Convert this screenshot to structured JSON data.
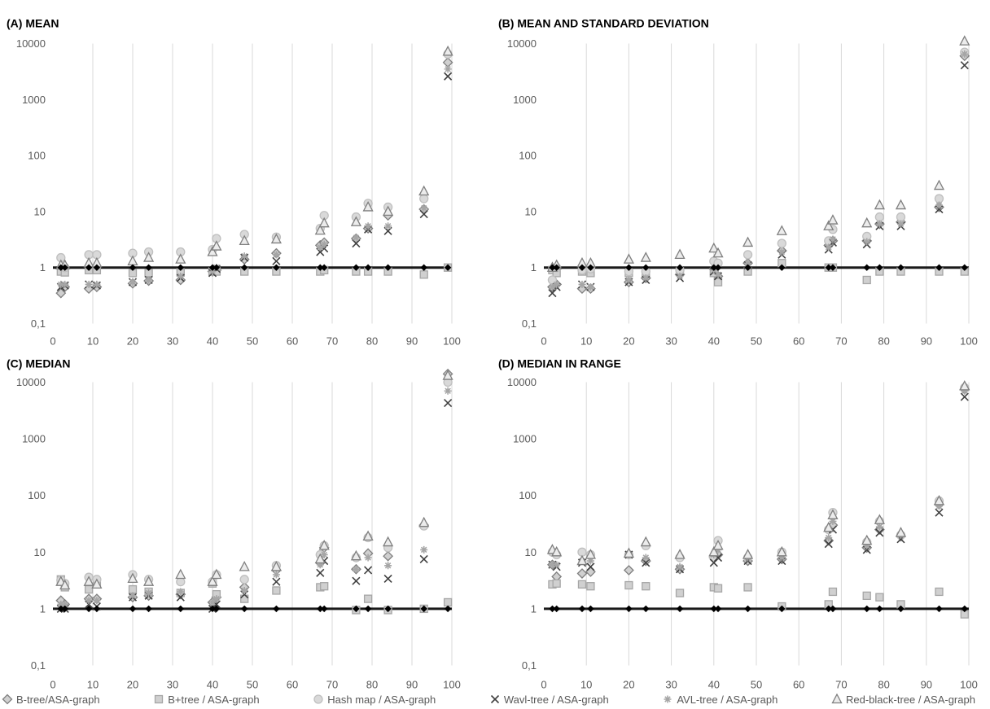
{
  "chart_data": {
    "legend": [
      {
        "name": "B-tree/ASA-graph",
        "marker": "diamond",
        "color": "#7f7f7f"
      },
      {
        "name": "B+tree / ASA-graph",
        "marker": "square",
        "color": "#a6a6a6"
      },
      {
        "name": "Hash map / ASA-graph",
        "marker": "circle",
        "color": "#bfbfbf"
      },
      {
        "name": "Wavl-tree / ASA-graph",
        "marker": "x",
        "color": "#404040"
      },
      {
        "name": "AVL-tree / ASA-graph",
        "marker": "star",
        "color": "#a6a6a6"
      },
      {
        "name": "Red-black-tree / ASA-graph",
        "marker": "triangle",
        "color": "#7f7f7f"
      }
    ],
    "panels": [
      {
        "title": "(A) MEAN",
        "type": "scatter",
        "xlim": [
          0,
          100
        ],
        "xticks": [
          0,
          10,
          20,
          30,
          40,
          50,
          60,
          70,
          80,
          90,
          100
        ],
        "ylog": true,
        "ylim": [
          0.1,
          10000
        ],
        "yticks": [
          "0,1",
          "1",
          "10",
          "100",
          "1000",
          "10000"
        ],
        "grid": "vertical",
        "reference_line": 1,
        "x": [
          2,
          3,
          9,
          11,
          20,
          24,
          32,
          40,
          41,
          48,
          56,
          67,
          68,
          76,
          79,
          84,
          93,
          99
        ],
        "series": [
          {
            "name": "B-tree/ASA-graph",
            "values": [
              0.35,
              0.45,
              0.42,
              0.45,
              0.52,
              0.58,
              0.6,
              0.85,
              0.9,
              1.4,
              1.8,
              2.5,
              2.8,
              3.3,
              5,
              8.5,
              11,
              4600
            ]
          },
          {
            "name": "B+tree / ASA-graph",
            "values": [
              0.85,
              0.82,
              0.9,
              0.9,
              0.8,
              0.8,
              0.82,
              0.85,
              0.85,
              0.85,
              0.85,
              0.85,
              0.9,
              0.85,
              0.85,
              0.85,
              0.75,
              1
            ]
          },
          {
            "name": "Hash map / ASA-graph",
            "values": [
              1.5,
              1,
              1.7,
              1.7,
              1.8,
              1.9,
              1.9,
              2.1,
              3.3,
              3.9,
              3.5,
              5,
              8.5,
              8,
              14,
              12,
              17,
              6500
            ]
          },
          {
            "name": "Wavl-tree / ASA-graph",
            "values": [
              0.45,
              0.48,
              0.5,
              0.48,
              0.55,
              0.6,
              0.65,
              0.8,
              0.95,
              1.5,
              1.3,
              1.9,
              2.2,
              2.7,
              4.8,
              4.5,
              9,
              2600
            ]
          },
          {
            "name": "AVL-tree / ASA-graph",
            "values": [
              0.5,
              0.5,
              0.5,
              0.5,
              0.55,
              0.6,
              0.7,
              0.85,
              1,
              1.6,
              1.7,
              2.3,
              2.6,
              3.4,
              5.5,
              5.5,
              11.5,
              3500
            ]
          },
          {
            "name": "Red-black-tree / ASA-graph",
            "values": [
              1.1,
              1.1,
              1.2,
              1.2,
              1.3,
              1.5,
              1.4,
              1.9,
              2.4,
              3,
              3.2,
              4.6,
              6.2,
              6.5,
              12,
              10,
              23,
              7200
            ]
          },
          {
            "name": "",
            "values": [
              1,
              1,
              1,
              1,
              1,
              1,
              1,
              1,
              1,
              1,
              1,
              1,
              1,
              1,
              1,
              1,
              1,
              1
            ]
          }
        ]
      },
      {
        "title": "(B) MEAN AND STANDARD DEVIATION",
        "type": "scatter",
        "xlim": [
          0,
          100
        ],
        "xticks": [
          0,
          10,
          20,
          30,
          40,
          50,
          60,
          70,
          80,
          90,
          100
        ],
        "ylog": true,
        "ylim": [
          0.1,
          10000
        ],
        "yticks": [
          "0,1",
          "1",
          "10",
          "100",
          "1000",
          "10000"
        ],
        "grid": "vertical",
        "reference_line": 1,
        "x": [
          2,
          3,
          9,
          11,
          20,
          24,
          32,
          40,
          41,
          48,
          56,
          67,
          68,
          76,
          79,
          84,
          93,
          99
        ],
        "series": [
          {
            "name": "B-tree/ASA-graph",
            "values": [
              0.45,
              0.5,
              0.42,
              0.42,
              0.55,
              0.65,
              0.75,
              0.95,
              0.7,
              1.2,
              2,
              2.5,
              3,
              3,
              6,
              6.5,
              12,
              6000
            ]
          },
          {
            "name": "B+tree / ASA-graph",
            "values": [
              0.9,
              0.8,
              0.85,
              0.8,
              0.8,
              0.8,
              0.85,
              0.8,
              0.55,
              0.85,
              1.2,
              1,
              1,
              0.6,
              0.85,
              0.85,
              0.85,
              0.85
            ]
          },
          {
            "name": "Hash map / ASA-graph",
            "values": [
              0.6,
              1,
              0.9,
              0.95,
              0.85,
              0.85,
              0.9,
              1.3,
              1.2,
              1.7,
              2.7,
              3,
              4.8,
              3.6,
              8,
              8,
              17,
              7000
            ]
          },
          {
            "name": "Wavl-tree / ASA-graph",
            "values": [
              0.35,
              0.45,
              0.5,
              0.45,
              0.55,
              0.6,
              0.65,
              0.85,
              0.7,
              1.1,
              1.7,
              2.1,
              2.8,
              2.6,
              5.5,
              5.5,
              11,
              4100
            ]
          },
          {
            "name": "AVL-tree / ASA-graph",
            "values": [
              0.45,
              0.5,
              0.5,
              0.45,
              0.6,
              0.65,
              0.7,
              0.9,
              0.75,
              1.2,
              1.9,
              2.3,
              3.2,
              2.9,
              6,
              6,
              13,
              6500
            ]
          },
          {
            "name": "Red-black-tree / ASA-graph",
            "values": [
              1,
              1.1,
              1.2,
              1.2,
              1.4,
              1.5,
              1.7,
              2.2,
              1.8,
              2.8,
              4.5,
              5.5,
              7,
              6.2,
              13,
              13,
              29,
              11000
            ]
          },
          {
            "name": "",
            "values": [
              1,
              1,
              1,
              1,
              1,
              1,
              1,
              1,
              1,
              1,
              1,
              1,
              1,
              1,
              1,
              1,
              1,
              1
            ]
          }
        ]
      },
      {
        "title": "(C) MEDIAN",
        "type": "scatter",
        "xlim": [
          0,
          100
        ],
        "xticks": [
          0,
          10,
          20,
          30,
          40,
          50,
          60,
          70,
          80,
          90,
          100
        ],
        "ylog": true,
        "ylim": [
          0.1,
          10000
        ],
        "yticks": [
          "0,1",
          "1",
          "10",
          "100",
          "1000",
          "10000"
        ],
        "grid": "vertical",
        "reference_line": 1,
        "x": [
          2,
          3,
          9,
          11,
          20,
          24,
          32,
          40,
          41,
          48,
          56,
          67,
          68,
          76,
          79,
          84,
          93,
          99
        ],
        "series": [
          {
            "name": "B-tree/ASA-graph",
            "values": [
              1.4,
              1.2,
              1.5,
              1.5,
              1.6,
              1.7,
              1.8,
              1.3,
              1.6,
              2.4,
              4.8,
              6.5,
              12,
              5,
              9.5,
              8.5,
              30,
              14000
            ]
          },
          {
            "name": "B+tree / ASA-graph",
            "values": [
              3.3,
              2.4,
              2.2,
              2.8,
              2.2,
              2,
              1.9,
              2.8,
              1.8,
              1.5,
              2.1,
              2.4,
              2.5,
              0.95,
              1.5,
              0.95,
              1,
              1.3
            ]
          },
          {
            "name": "Hash map / ASA-graph",
            "values": [
              3.2,
              2.8,
              3.6,
              3.3,
              4,
              3.3,
              3,
              3,
              4,
              3.3,
              5.8,
              9,
              13,
              8,
              18,
              12,
              29,
              10000
            ]
          },
          {
            "name": "Wavl-tree / ASA-graph",
            "values": [
              1,
              1,
              1.2,
              1.1,
              1.6,
              1.7,
              1.6,
              1,
              1.2,
              1.8,
              3,
              4.3,
              7,
              3.1,
              4.8,
              3.4,
              7.5,
              4300
            ]
          },
          {
            "name": "AVL-tree / ASA-graph",
            "values": [
              1.2,
              1.2,
              1.4,
              1.4,
              1.7,
              1.9,
              2,
              1.3,
              1.5,
              2.1,
              4,
              6,
              9,
              5,
              8,
              5.8,
              11,
              7000
            ]
          },
          {
            "name": "Red-black-tree / ASA-graph",
            "values": [
              3,
              2.6,
              3,
              2.7,
              3.4,
              3,
              4,
              3,
              4,
              5.5,
              5.5,
              7.5,
              13,
              8.5,
              19,
              15,
              33,
              13000
            ]
          },
          {
            "name": "",
            "values": [
              1,
              1,
              1,
              1,
              1,
              1,
              1,
              1,
              1,
              1,
              1,
              1,
              1,
              1,
              1,
              1,
              1,
              1
            ]
          }
        ]
      },
      {
        "title": "(D) MEDIAN IN RANGE",
        "type": "scatter",
        "xlim": [
          0,
          100
        ],
        "xticks": [
          0,
          10,
          20,
          30,
          40,
          50,
          60,
          70,
          80,
          90,
          100
        ],
        "ylog": true,
        "ylim": [
          0.1,
          10000
        ],
        "yticks": [
          "0,1",
          "1",
          "10",
          "100",
          "1000",
          "10000"
        ],
        "grid": "vertical",
        "reference_line": 1,
        "x": [
          2,
          3,
          9,
          11,
          20,
          24,
          32,
          40,
          41,
          48,
          56,
          67,
          68,
          76,
          79,
          84,
          93,
          99
        ],
        "series": [
          {
            "name": "B-tree/ASA-graph",
            "values": [
              6,
              3.7,
              4.2,
              4.5,
              4.8,
              7,
              5,
              8,
              9,
              7,
              7.5,
              16,
              30,
              12,
              25,
              19,
              70,
              7500
            ]
          },
          {
            "name": "B+tree / ASA-graph",
            "values": [
              2.7,
              2.8,
              2.7,
              2.5,
              2.6,
              2.5,
              1.9,
              2.4,
              2.3,
              2.4,
              1.1,
              1.2,
              2,
              1.7,
              1.6,
              1.2,
              2,
              0.8
            ]
          },
          {
            "name": "Hash map / ASA-graph",
            "values": [
              10,
              9,
              10,
              9,
              9,
              13,
              8,
              8,
              16,
              8,
              10,
              25,
              50,
              15,
              35,
              20,
              80,
              8000
            ]
          },
          {
            "name": "Wavl-tree / ASA-graph",
            "values": [
              6,
              5.5,
              6.5,
              5.5,
              9,
              6.5,
              5,
              6.5,
              8,
              7,
              7,
              14,
              25,
              11,
              22,
              17,
              50,
              5500
            ]
          },
          {
            "name": "AVL-tree / ASA-graph",
            "values": [
              6,
              6,
              7,
              7,
              9,
              8,
              5.5,
              9,
              11,
              8,
              8,
              18,
              35,
              13,
              28,
              20,
              65,
              7000
            ]
          },
          {
            "name": "Red-black-tree / ASA-graph",
            "values": [
              11,
              10,
              7,
              9,
              9.5,
              15,
              9,
              10,
              13,
              9,
              10,
              27,
              45,
              16,
              37,
              22,
              80,
              8500
            ]
          },
          {
            "name": "",
            "values": [
              1,
              1,
              1,
              1,
              1,
              1,
              1,
              1,
              1,
              1,
              1,
              1,
              1,
              1,
              1,
              1,
              1,
              1
            ]
          }
        ]
      }
    ]
  }
}
